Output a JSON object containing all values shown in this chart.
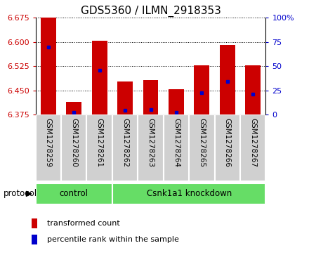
{
  "title": "GDS5360 / ILMN_2918353",
  "samples": [
    "GSM1278259",
    "GSM1278260",
    "GSM1278261",
    "GSM1278262",
    "GSM1278263",
    "GSM1278264",
    "GSM1278265",
    "GSM1278266",
    "GSM1278267"
  ],
  "bar_bottom": 6.375,
  "bar_tops": [
    6.675,
    6.415,
    6.605,
    6.478,
    6.483,
    6.453,
    6.528,
    6.59,
    6.528
  ],
  "blue_positions": [
    6.585,
    6.383,
    6.513,
    6.388,
    6.392,
    6.382,
    6.443,
    6.477,
    6.438
  ],
  "ylim": [
    6.375,
    6.675
  ],
  "yticks": [
    6.375,
    6.45,
    6.525,
    6.6,
    6.675
  ],
  "right_yticks": [
    0,
    25,
    50,
    75,
    100
  ],
  "red_color": "#cc0000",
  "blue_color": "#0000cc",
  "bar_width": 0.6,
  "n_control": 3,
  "n_knockdown": 6,
  "control_label": "control",
  "knockdown_label": "Csnk1a1 knockdown",
  "protocol_label": "protocol",
  "legend1": "transformed count",
  "legend2": "percentile rank within the sample",
  "group_color": "#66dd66",
  "tick_area_color": "#d0d0d0",
  "title_fontsize": 11,
  "axis_fontsize": 8,
  "sample_fontsize": 7.5,
  "label_fontsize": 8
}
